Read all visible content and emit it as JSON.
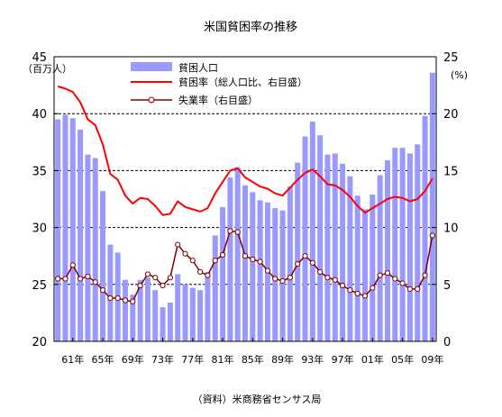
{
  "chart_data": {
    "type": "bar",
    "title": "米国貧困率の推移",
    "source": "（資料）米商務省センサス局",
    "y_left": {
      "unit": "（百万人）",
      "ylim": [
        20,
        45
      ],
      "ticks": [
        20,
        25,
        30,
        35,
        40,
        45
      ]
    },
    "y_right": {
      "unit": "(%)",
      "ylim": [
        0,
        25
      ],
      "ticks": [
        0,
        5,
        10,
        15,
        20,
        25
      ]
    },
    "x": [
      1959,
      1960,
      1961,
      1962,
      1963,
      1964,
      1965,
      1966,
      1967,
      1968,
      1969,
      1970,
      1971,
      1972,
      1973,
      1974,
      1975,
      1976,
      1977,
      1978,
      1979,
      1980,
      1981,
      1982,
      1983,
      1984,
      1985,
      1986,
      1987,
      1988,
      1989,
      1990,
      1991,
      1992,
      1993,
      1994,
      1995,
      1996,
      1997,
      1998,
      1999,
      2000,
      2001,
      2002,
      2003,
      2004,
      2005,
      2006,
      2007,
      2008,
      2009
    ],
    "x_ticks": [
      {
        "x": 1961,
        "label": "61年"
      },
      {
        "x": 1965,
        "label": "65年"
      },
      {
        "x": 1969,
        "label": "69年"
      },
      {
        "x": 1973,
        "label": "73年"
      },
      {
        "x": 1977,
        "label": "77年"
      },
      {
        "x": 1981,
        "label": "81年"
      },
      {
        "x": 1985,
        "label": "85年"
      },
      {
        "x": 1989,
        "label": "89年"
      },
      {
        "x": 1993,
        "label": "93年"
      },
      {
        "x": 1997,
        "label": "97年"
      },
      {
        "x": 2001,
        "label": "01年"
      },
      {
        "x": 2005,
        "label": "05年"
      },
      {
        "x": 2009,
        "label": "09年"
      }
    ],
    "grid": "horizontal dashed",
    "legend_position": "top-left",
    "series": [
      {
        "name": "貧困人口",
        "type": "bar",
        "axis": "left",
        "color": "#9999ff",
        "values": [
          39.5,
          39.9,
          39.6,
          38.6,
          36.4,
          36.1,
          33.2,
          28.5,
          27.8,
          25.4,
          24.1,
          25.4,
          25.6,
          24.5,
          23.0,
          23.4,
          25.9,
          25.0,
          24.7,
          24.5,
          26.1,
          29.3,
          31.8,
          34.4,
          35.3,
          33.7,
          33.1,
          32.4,
          32.2,
          31.7,
          31.5,
          33.6,
          35.7,
          38.0,
          39.3,
          38.1,
          36.4,
          36.5,
          35.6,
          34.5,
          32.8,
          31.6,
          32.9,
          34.6,
          35.9,
          37.0,
          37.0,
          36.5,
          37.3,
          39.8,
          43.6
        ]
      },
      {
        "name": "貧困率（総人口比、右目盛）",
        "type": "line",
        "axis": "right",
        "color": "#ff0000",
        "values": [
          22.4,
          22.2,
          21.9,
          21.0,
          19.5,
          19.0,
          17.3,
          14.7,
          14.2,
          12.8,
          12.1,
          12.6,
          12.5,
          11.9,
          11.1,
          11.2,
          12.3,
          11.8,
          11.6,
          11.4,
          11.7,
          13.0,
          14.0,
          15.0,
          15.2,
          14.4,
          14.0,
          13.6,
          13.4,
          13.0,
          12.8,
          13.5,
          14.2,
          14.8,
          15.1,
          14.5,
          13.8,
          13.7,
          13.3,
          12.7,
          11.9,
          11.3,
          11.7,
          12.1,
          12.5,
          12.7,
          12.6,
          12.3,
          12.5,
          13.2,
          14.3
        ]
      },
      {
        "name": "失業率（右目盛）",
        "type": "line",
        "axis": "right",
        "color": "#800000",
        "values": [
          5.5,
          5.5,
          6.7,
          5.5,
          5.7,
          5.2,
          4.5,
          3.8,
          3.8,
          3.6,
          3.5,
          4.9,
          5.9,
          5.6,
          4.9,
          5.6,
          8.5,
          7.7,
          7.1,
          6.1,
          5.8,
          7.1,
          7.6,
          9.7,
          9.6,
          7.5,
          7.2,
          7.0,
          6.2,
          5.5,
          5.3,
          5.6,
          6.8,
          7.5,
          6.9,
          6.1,
          5.6,
          5.4,
          4.9,
          4.5,
          4.2,
          4.0,
          4.7,
          5.8,
          6.0,
          5.5,
          5.1,
          4.6,
          4.6,
          5.8,
          9.3
        ]
      }
    ]
  }
}
